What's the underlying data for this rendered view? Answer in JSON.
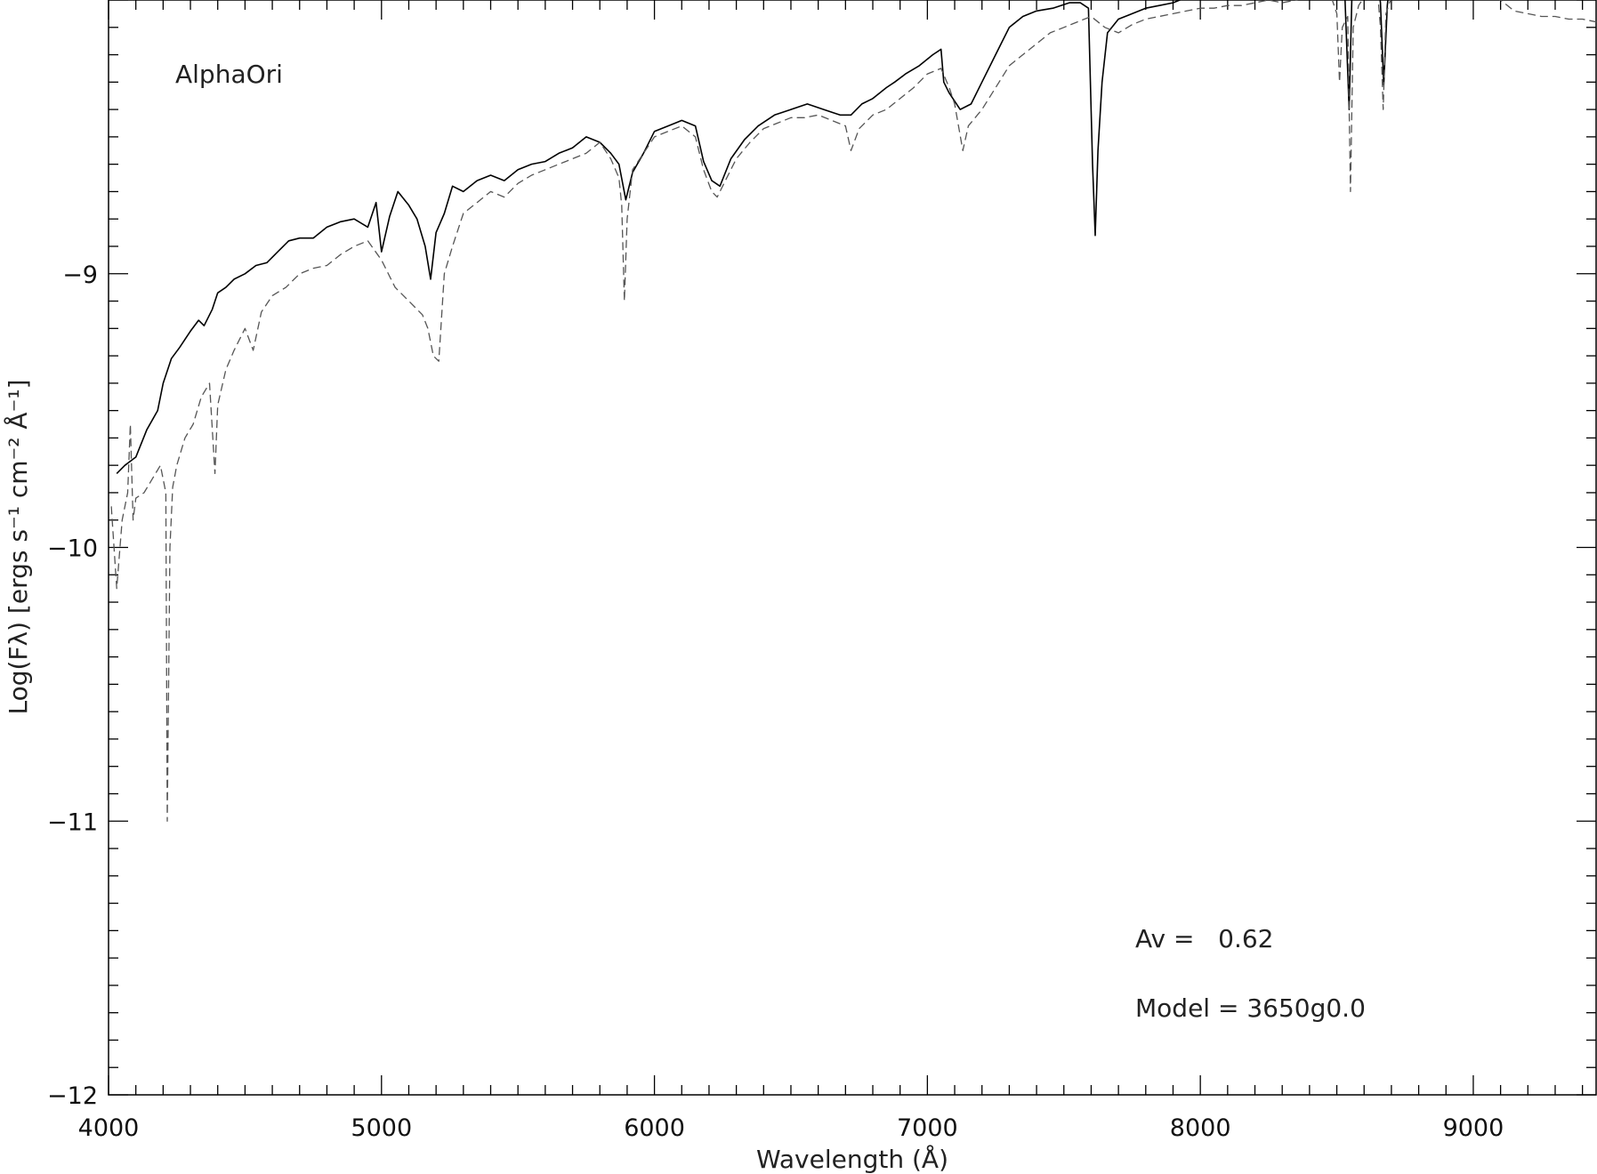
{
  "chart_data": {
    "type": "line",
    "title": "",
    "xlabel": "Wavelength (Å)",
    "ylabel": "Log(Fλ) [ergs s⁻¹ cm⁻² Å⁻¹]",
    "xlim": [
      4000,
      9450
    ],
    "ylim": [
      -12,
      -8.0
    ],
    "xticks": [
      4000,
      5000,
      6000,
      7000,
      8000,
      9000
    ],
    "yticks": [
      -12,
      -11,
      -10,
      -9
    ],
    "grid": false,
    "annotations": {
      "object": "AlphaOri",
      "av": "Av =   0.62",
      "model": "Model = 3650g0.0"
    },
    "series": [
      {
        "style": "solid",
        "color": "#000000",
        "x": [
          4030,
          4060,
          4100,
          4140,
          4180,
          4200,
          4230,
          4260,
          4300,
          4330,
          4350,
          4380,
          4400,
          4430,
          4460,
          4500,
          4540,
          4580,
          4620,
          4660,
          4700,
          4750,
          4800,
          4850,
          4900,
          4950,
          4980,
          5000,
          5030,
          5060,
          5100,
          5130,
          5160,
          5180,
          5200,
          5230,
          5260,
          5300,
          5350,
          5400,
          5450,
          5500,
          5550,
          5600,
          5650,
          5700,
          5750,
          5800,
          5840,
          5870,
          5895,
          5920,
          5960,
          6000,
          6050,
          6100,
          6150,
          6180,
          6210,
          6240,
          6280,
          6330,
          6380,
          6440,
          6500,
          6560,
          6620,
          6680,
          6720,
          6760,
          6800,
          6850,
          6880,
          6920,
          6970,
          7020,
          7050,
          7060,
          7080,
          7120,
          7160,
          7200,
          7260,
          7300,
          7350,
          7400,
          7460,
          7520,
          7560,
          7590,
          7605,
          7615,
          7625,
          7640,
          7660,
          7700,
          7750,
          7800,
          7850,
          7900,
          7950,
          8000,
          8050,
          8100,
          8150,
          8200,
          8250,
          8300,
          8350,
          8400,
          8450,
          8500,
          8530,
          8545,
          8555,
          8570,
          8600,
          8640,
          8660,
          8672,
          8685,
          8700,
          8750,
          8800,
          8850,
          8900,
          8950,
          9000,
          9050,
          9100,
          9140
        ],
        "y": [
          -9.73,
          -9.7,
          -9.67,
          -9.57,
          -9.5,
          -9.4,
          -9.31,
          -9.27,
          -9.21,
          -9.17,
          -9.19,
          -9.13,
          -9.07,
          -9.05,
          -9.02,
          -9.0,
          -8.97,
          -8.96,
          -8.92,
          -8.88,
          -8.87,
          -8.87,
          -8.83,
          -8.81,
          -8.8,
          -8.83,
          -8.74,
          -8.92,
          -8.79,
          -8.7,
          -8.75,
          -8.8,
          -8.9,
          -9.02,
          -8.85,
          -8.78,
          -8.68,
          -8.7,
          -8.66,
          -8.64,
          -8.66,
          -8.62,
          -8.6,
          -8.59,
          -8.56,
          -8.54,
          -8.5,
          -8.52,
          -8.56,
          -8.6,
          -8.73,
          -8.63,
          -8.56,
          -8.48,
          -8.46,
          -8.44,
          -8.46,
          -8.59,
          -8.66,
          -8.68,
          -8.58,
          -8.51,
          -8.46,
          -8.42,
          -8.4,
          -8.38,
          -8.4,
          -8.42,
          -8.42,
          -8.38,
          -8.36,
          -8.32,
          -8.3,
          -8.27,
          -8.24,
          -8.2,
          -8.18,
          -8.3,
          -8.34,
          -8.4,
          -8.38,
          -8.3,
          -8.18,
          -8.1,
          -8.06,
          -8.04,
          -8.03,
          -8.01,
          -8.01,
          -8.03,
          -8.6,
          -8.86,
          -8.55,
          -8.3,
          -8.12,
          -8.07,
          -8.05,
          -8.03,
          -8.02,
          -8.01,
          -7.99,
          -7.98,
          -7.97,
          -7.96,
          -7.97,
          -7.96,
          -7.97,
          -7.94,
          -7.93,
          -7.94,
          -7.92,
          -7.93,
          -8.0,
          -8.4,
          -8.0,
          -7.92,
          -7.88,
          -7.86,
          -8.01,
          -8.31,
          -8.02,
          -7.88,
          -7.86,
          -7.84,
          -7.82,
          -7.81,
          -7.83,
          -7.85,
          -7.87,
          -7.92,
          -7.99
        ]
      },
      {
        "style": "dashed",
        "color": "#555555",
        "x": [
          4010,
          4030,
          4050,
          4070,
          4080,
          4090,
          4100,
          4130,
          4160,
          4190,
          4210,
          4215,
          4225,
          4235,
          4250,
          4280,
          4310,
          4340,
          4370,
          4390,
          4400,
          4430,
          4460,
          4500,
          4530,
          4560,
          4600,
          4650,
          4700,
          4750,
          4800,
          4850,
          4900,
          4950,
          5000,
          5050,
          5100,
          5150,
          5170,
          5190,
          5210,
          5230,
          5260,
          5300,
          5350,
          5400,
          5450,
          5500,
          5550,
          5600,
          5650,
          5700,
          5750,
          5800,
          5840,
          5870,
          5880,
          5890,
          5900,
          5920,
          5960,
          6000,
          6050,
          6100,
          6150,
          6180,
          6210,
          6230,
          6260,
          6300,
          6350,
          6400,
          6450,
          6500,
          6550,
          6600,
          6650,
          6700,
          6720,
          6750,
          6800,
          6850,
          6900,
          6950,
          7000,
          7050,
          7080,
          7100,
          7130,
          7150,
          7200,
          7250,
          7300,
          7350,
          7400,
          7450,
          7500,
          7550,
          7600,
          7650,
          7700,
          7750,
          7800,
          7850,
          7900,
          7950,
          8000,
          8050,
          8100,
          8150,
          8200,
          8250,
          8300,
          8350,
          8400,
          8450,
          8480,
          8500,
          8510,
          8520,
          8540,
          8550,
          8560,
          8580,
          8600,
          8650,
          8660,
          8670,
          8680,
          8700,
          8750,
          8800,
          8850,
          8900,
          8950,
          9000,
          9050,
          9100,
          9150,
          9200,
          9250,
          9300,
          9350,
          9400,
          9450
        ],
        "y": [
          -9.85,
          -10.15,
          -9.9,
          -9.8,
          -9.55,
          -9.9,
          -9.82,
          -9.8,
          -9.75,
          -9.7,
          -9.8,
          -11.0,
          -10.0,
          -9.78,
          -9.7,
          -9.6,
          -9.55,
          -9.45,
          -9.4,
          -9.73,
          -9.48,
          -9.35,
          -9.28,
          -9.2,
          -9.28,
          -9.14,
          -9.08,
          -9.05,
          -9.0,
          -8.98,
          -8.97,
          -8.93,
          -8.9,
          -8.88,
          -8.95,
          -9.05,
          -9.1,
          -9.15,
          -9.2,
          -9.3,
          -9.32,
          -9.0,
          -8.9,
          -8.78,
          -8.74,
          -8.7,
          -8.72,
          -8.67,
          -8.64,
          -8.62,
          -8.6,
          -8.58,
          -8.56,
          -8.52,
          -8.58,
          -8.65,
          -8.75,
          -9.1,
          -8.8,
          -8.62,
          -8.56,
          -8.5,
          -8.48,
          -8.46,
          -8.5,
          -8.62,
          -8.7,
          -8.72,
          -8.66,
          -8.58,
          -8.52,
          -8.47,
          -8.45,
          -8.43,
          -8.43,
          -8.42,
          -8.44,
          -8.46,
          -8.55,
          -8.47,
          -8.42,
          -8.4,
          -8.36,
          -8.32,
          -8.27,
          -8.25,
          -8.32,
          -8.38,
          -8.55,
          -8.46,
          -8.4,
          -8.32,
          -8.24,
          -8.2,
          -8.16,
          -8.12,
          -8.1,
          -8.08,
          -8.06,
          -8.1,
          -8.12,
          -8.09,
          -8.07,
          -8.06,
          -8.05,
          -8.04,
          -8.03,
          -8.03,
          -8.02,
          -8.02,
          -8.01,
          -8.0,
          -8.01,
          -8.0,
          -7.99,
          -7.99,
          -7.99,
          -8.05,
          -8.3,
          -8.1,
          -8.06,
          -8.7,
          -8.1,
          -8.02,
          -7.99,
          -7.98,
          -8.1,
          -8.4,
          -8.05,
          -7.99,
          -7.98,
          -7.99,
          -7.98,
          -7.98,
          -7.98,
          -7.99,
          -7.98,
          -8.0,
          -8.04,
          -8.05,
          -8.06,
          -8.06,
          -8.07,
          -8.07,
          -8.08
        ]
      }
    ]
  }
}
